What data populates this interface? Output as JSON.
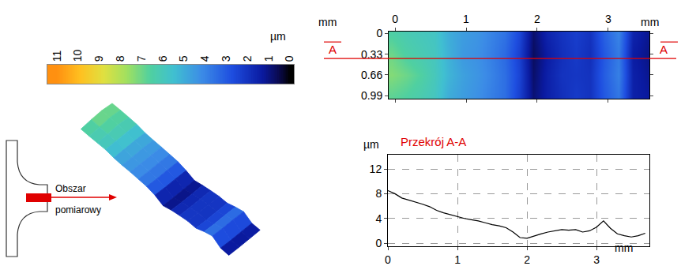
{
  "chart_data": [
    {
      "type": "colorbar",
      "unit": "µm",
      "xlim": [
        11.45,
        -0.19
      ],
      "xticks": [
        11,
        10,
        9,
        8,
        7,
        6,
        5,
        4,
        3,
        2,
        1,
        0
      ],
      "color_range": [
        0,
        11
      ]
    },
    {
      "type": "heatmap",
      "x_unit": "mm",
      "y_unit": "mm",
      "x": [
        -0.05,
        0.15,
        0.35,
        0.55,
        0.75,
        0.95,
        1.15,
        1.35,
        1.55,
        1.75,
        1.95,
        2.15,
        2.35,
        2.55,
        2.75,
        2.95,
        3.15,
        3.35,
        3.55
      ],
      "y": [
        0,
        0.33,
        0.66,
        0.99
      ],
      "z": [
        [
          6.5,
          6.2,
          6.0,
          5.8,
          5.0,
          4.6,
          4.4,
          4.0,
          3.6,
          2.6,
          0.8,
          1.6,
          2.0,
          2.3,
          2.0,
          3.2,
          4.0,
          1.6,
          1.2
        ],
        [
          7.0,
          6.5,
          6.2,
          5.9,
          5.1,
          4.5,
          4.3,
          3.9,
          3.4,
          2.4,
          0.7,
          1.4,
          1.9,
          2.2,
          1.9,
          3.0,
          3.8,
          1.4,
          1.1
        ],
        [
          7.3,
          7.0,
          6.6,
          6.0,
          5.2,
          4.7,
          4.4,
          4.0,
          3.5,
          2.5,
          0.8,
          1.5,
          2.0,
          2.1,
          2.0,
          3.1,
          3.9,
          1.5,
          1.2
        ],
        [
          6.8,
          6.6,
          6.3,
          5.9,
          5.0,
          4.6,
          4.3,
          3.9,
          3.5,
          2.4,
          0.9,
          1.5,
          1.9,
          2.2,
          2.0,
          3.0,
          3.7,
          1.5,
          1.3
        ]
      ],
      "xlim": [
        -0.09,
        3.58
      ],
      "ylim": [
        1.04,
        -0.03
      ],
      "xticks": [
        0,
        1,
        2,
        3
      ],
      "yticks": [
        0,
        0.33,
        0.66,
        0.99
      ],
      "section": {
        "y": 0.4,
        "label": "A"
      }
    },
    {
      "type": "line",
      "title": "Przekrój A-A",
      "x_label": "mm",
      "y_label": "µm",
      "x": [
        0,
        0.1,
        0.2,
        0.3,
        0.4,
        0.5,
        0.6,
        0.7,
        0.8,
        0.9,
        1.0,
        1.1,
        1.2,
        1.3,
        1.4,
        1.5,
        1.6,
        1.7,
        1.8,
        1.9,
        2.0,
        2.1,
        2.2,
        2.3,
        2.4,
        2.5,
        2.6,
        2.7,
        2.8,
        2.9,
        3.0,
        3.1,
        3.2,
        3.3,
        3.4,
        3.5,
        3.6,
        3.7
      ],
      "values": [
        8.5,
        8.0,
        7.3,
        7.0,
        6.6,
        6.3,
        5.9,
        5.3,
        4.9,
        4.6,
        4.3,
        4.0,
        3.8,
        3.6,
        3.3,
        3.0,
        2.8,
        2.5,
        1.8,
        0.9,
        0.8,
        1.2,
        1.5,
        1.8,
        2.0,
        2.2,
        2.1,
        2.2,
        1.8,
        2.0,
        2.6,
        3.6,
        2.4,
        1.5,
        1.2,
        1.0,
        1.2,
        1.6
      ],
      "xlim": [
        0,
        3.76
      ],
      "ylim": [
        -0.5,
        14.3
      ],
      "xticks": [
        0,
        1,
        2,
        3
      ],
      "yticks": [
        0,
        4,
        8,
        12
      ],
      "grid": true,
      "color": "#000000"
    }
  ],
  "diagram": {
    "label": [
      "Obszar",
      "pomiarowy"
    ]
  }
}
